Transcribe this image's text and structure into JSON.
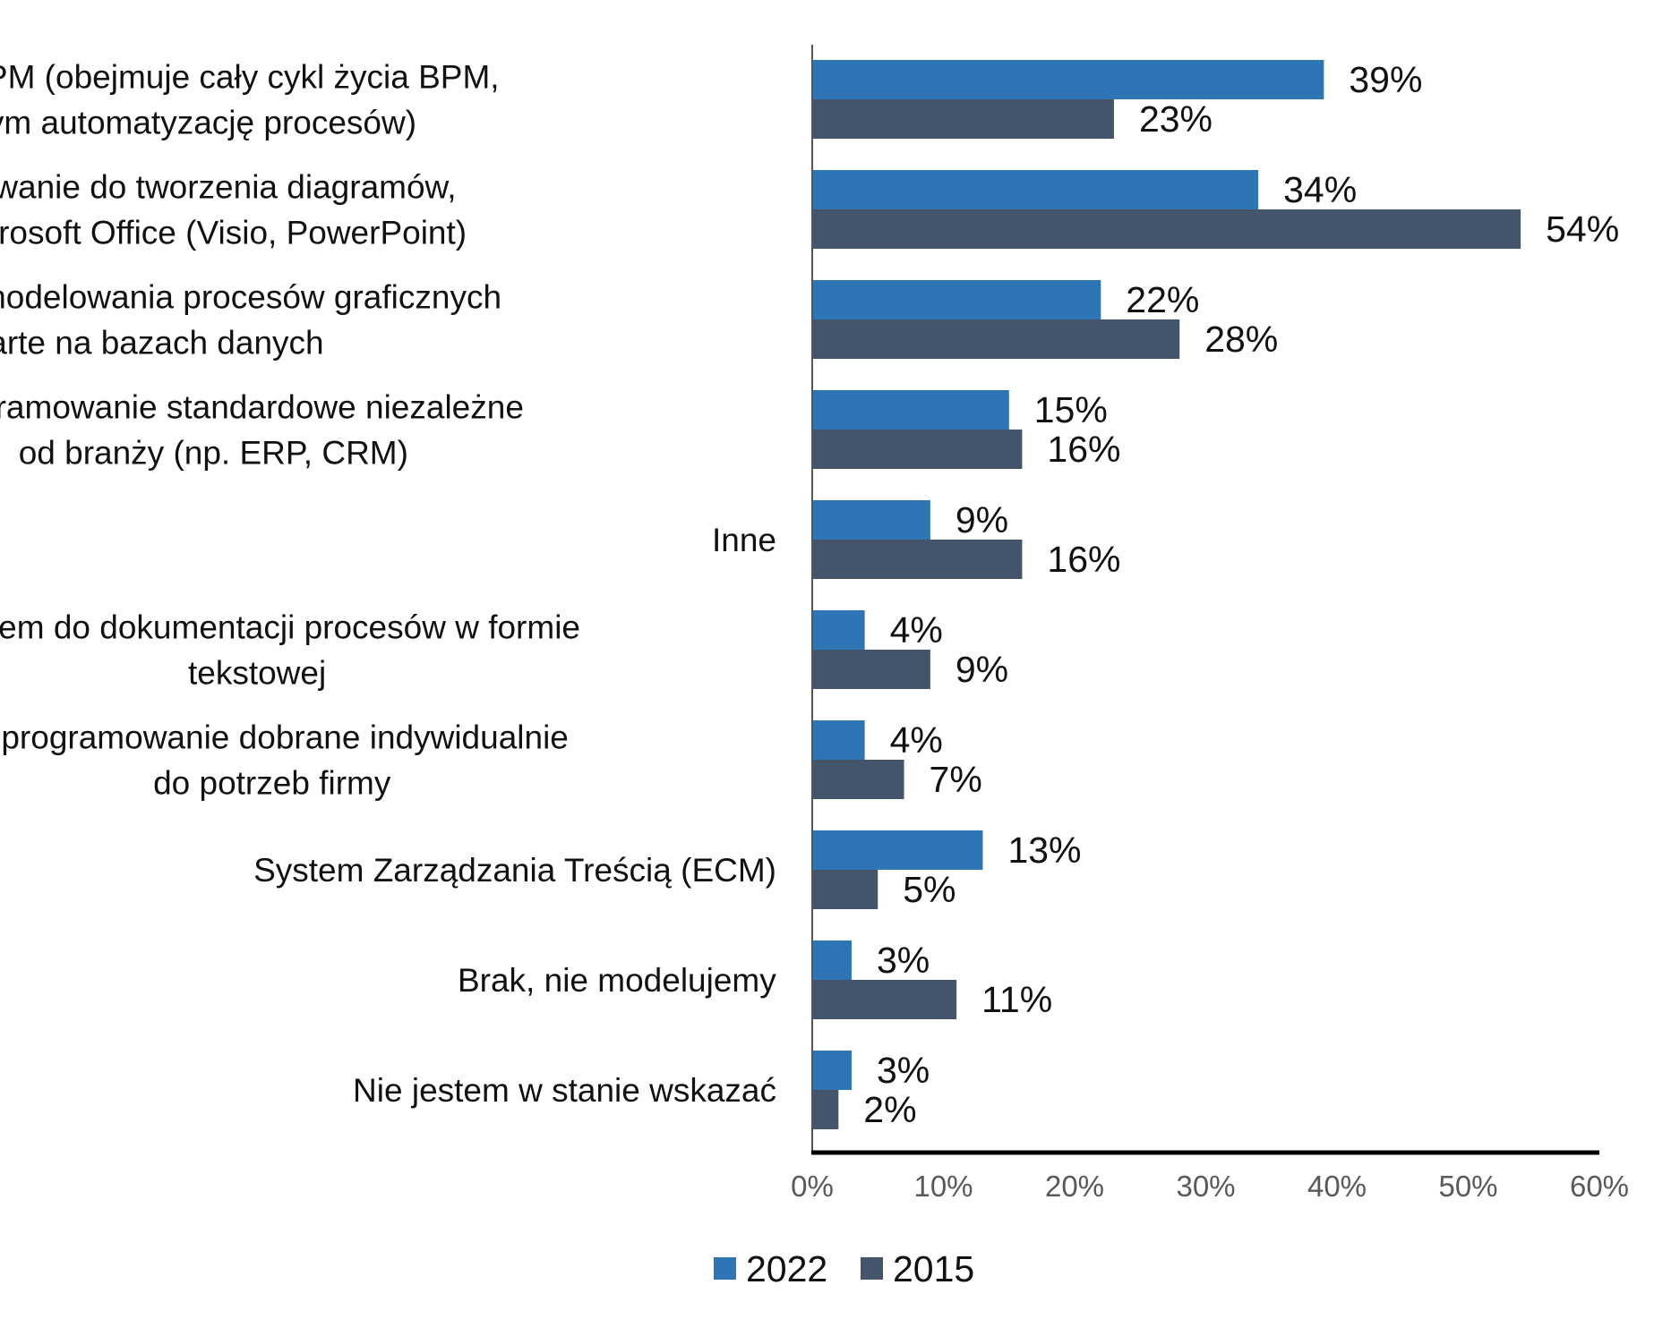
{
  "chart_data": {
    "type": "bar",
    "orientation": "horizontal",
    "title": "",
    "xlabel": "",
    "ylabel": "",
    "xlim": [
      0,
      60
    ],
    "x_ticks": [
      0,
      10,
      20,
      30,
      40,
      50,
      60
    ],
    "x_tick_labels": [
      "0%",
      "10%",
      "20%",
      "30%",
      "40%",
      "50%",
      "60%"
    ],
    "grid": false,
    "legend_position": "bottom-center",
    "categories": [
      [
        "Pakiet BPM (obejmuje cały cykl życia BPM,",
        "w tym automatyzację procesów)"
      ],
      [
        "Oprogramowanie do tworzenia diagramów,",
        "takie jak Microsoft Office (Visio, PowerPoint)"
      ],
      [
        "Narzędzia do modelowania procesów graficznych",
        "oparte na bazach danych"
      ],
      [
        "Oprogramowanie standardowe niezależne",
        "od branży (np. ERP, CRM)"
      ],
      [
        "Inne"
      ],
      [
        "System do dokumentacji procesów w formie",
        "tekstowej"
      ],
      [
        "Oprogramowanie dobrane indywidualnie",
        "do potrzeb firmy"
      ],
      [
        "System Zarządzania Treścią (ECM)"
      ],
      [
        "Brak, nie modelujemy"
      ],
      [
        "Nie jestem w stanie wskazać"
      ]
    ],
    "series": [
      {
        "name": "2022",
        "color": "#2E75B6",
        "values": [
          39,
          34,
          22,
          15,
          9,
          4,
          4,
          13,
          3,
          3
        ],
        "labels": [
          "39%",
          "34%",
          "22%",
          "15%",
          "9%",
          "4%",
          "4%",
          "13%",
          "3%",
          "3%"
        ]
      },
      {
        "name": "2015",
        "color": "#44546A",
        "values": [
          23,
          54,
          28,
          16,
          16,
          9,
          7,
          5,
          11,
          2
        ],
        "labels": [
          "23%",
          "54%",
          "28%",
          "16%",
          "16%",
          "9%",
          "7%",
          "5%",
          "11%",
          "2%"
        ]
      }
    ]
  }
}
